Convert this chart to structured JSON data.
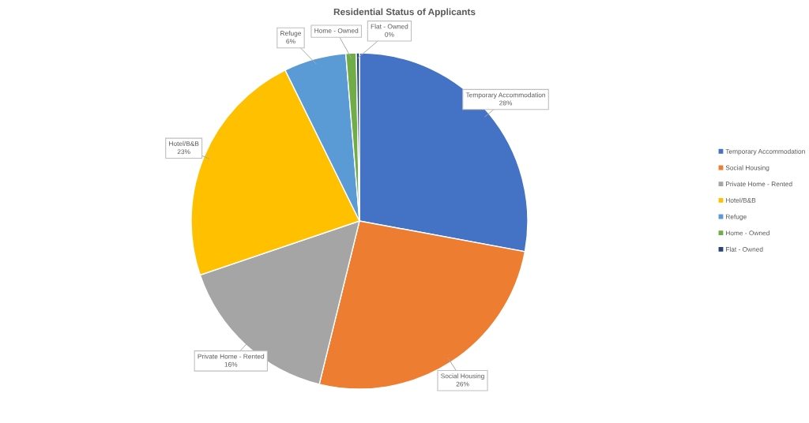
{
  "chart_data": {
    "type": "pie",
    "title": "Residential Status of Applicants",
    "categories": [
      "Temporary Accommodation",
      "Social Housing",
      "Private Home - Rented",
      "Hotel/B&B",
      "Refuge",
      "Home - Owned",
      "Flat - Owned"
    ],
    "values": [
      28,
      26,
      16,
      23,
      6,
      1,
      0.3
    ],
    "colors": [
      "#4472c4",
      "#ed7d31",
      "#a5a5a5",
      "#ffc000",
      "#5b9bd5",
      "#70ad47",
      "#264478"
    ],
    "value_labels": [
      "28%",
      "26%",
      "16%",
      "23%",
      "6%",
      null,
      "0%"
    ],
    "legend": "right"
  }
}
